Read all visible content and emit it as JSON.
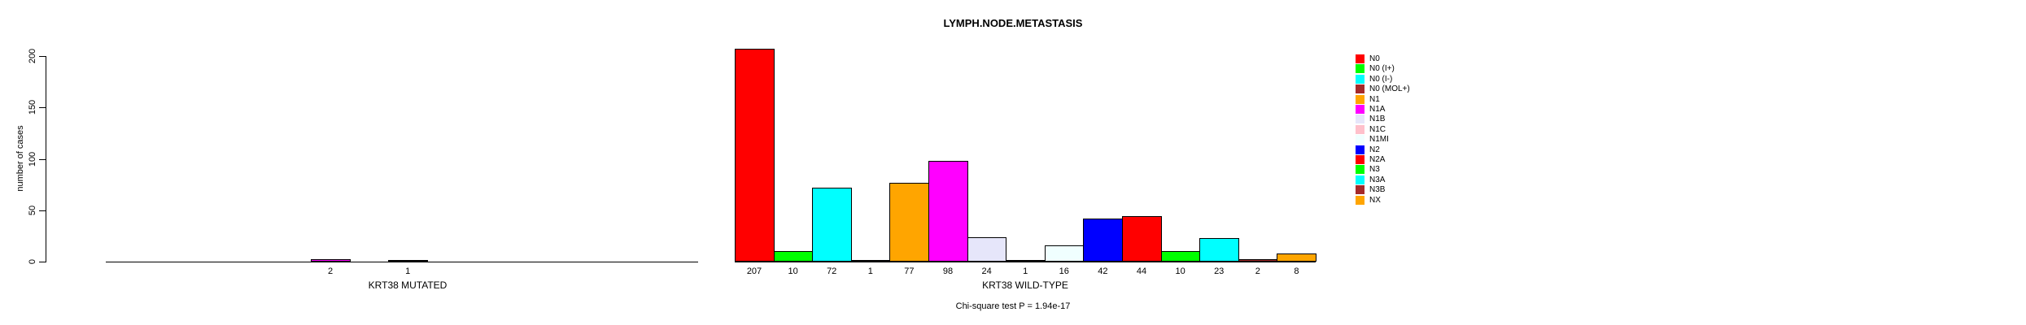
{
  "chart_data": {
    "type": "bar",
    "title": "LYMPH.NODE.METASTASIS",
    "ylabel": "number of cases",
    "footnote": "Chi-square test P = 1.94e-17",
    "ylim": [
      0,
      200
    ],
    "yticks": [
      0,
      50,
      100,
      150,
      200
    ],
    "grid": false,
    "legend_position": "right",
    "categories": [
      "N0",
      "N0 (I+)",
      "N0 (I-)",
      "N0 (MOL+)",
      "N1",
      "N1A",
      "N1B",
      "N1C",
      "N1MI",
      "N2",
      "N2A",
      "N3",
      "N3A",
      "N3B",
      "NX"
    ],
    "colors": [
      "#FF0000",
      "#00FF00",
      "#00FFFF",
      "#A52A2A",
      "#FFA500",
      "#FF00FF",
      "#E6E6FA",
      "#FFC0CB",
      "#F0FFFF",
      "#0000FF",
      "#FF0000",
      "#00FF00",
      "#00FFFF",
      "#A52A2A",
      "#FFA500"
    ],
    "series": [
      {
        "name": "KRT38 MUTATED",
        "values": [
          0,
          0,
          0,
          0,
          0,
          2,
          0,
          1,
          0,
          0,
          0,
          0,
          0,
          0,
          0
        ]
      },
      {
        "name": "KRT38 WILD-TYPE",
        "values": [
          207,
          10,
          72,
          1,
          77,
          98,
          24,
          1,
          16,
          42,
          44,
          10,
          23,
          2,
          8
        ]
      }
    ],
    "axis_color": "#000000",
    "background_color": "#FFFFFF"
  }
}
